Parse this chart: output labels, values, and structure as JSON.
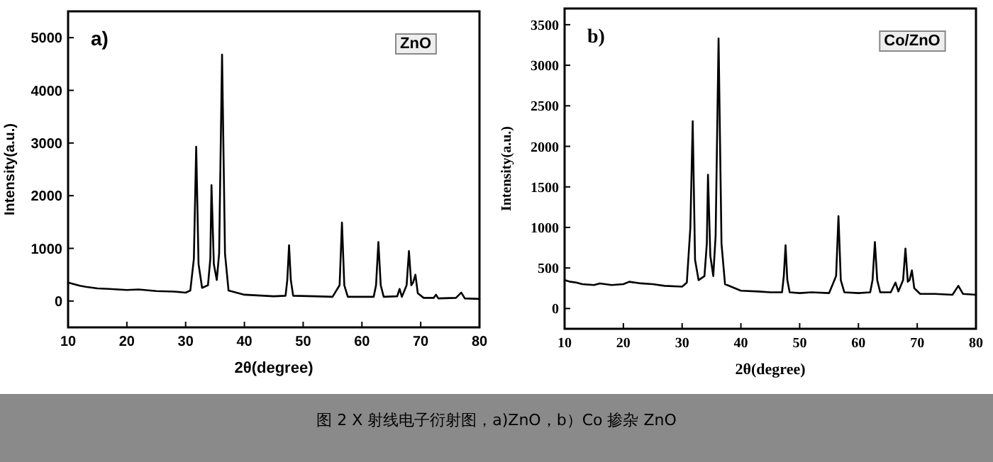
{
  "chart_data": [
    {
      "type": "line",
      "xlabel": "2θ(degree)",
      "ylabel": "Intensity(a.u.)",
      "xlim": [
        10,
        80
      ],
      "ylim": [
        -500,
        5500
      ],
      "xticks": [
        10,
        20,
        30,
        40,
        50,
        60,
        70,
        80
      ],
      "yticks": [
        0,
        1000,
        2000,
        3000,
        4000,
        5000
      ],
      "color": "#000000",
      "x": [
        10,
        11,
        12,
        13,
        15,
        17,
        20,
        22,
        25,
        28,
        30,
        30.8,
        31.4,
        31.8,
        32.2,
        32.8,
        33.8,
        34.2,
        34.4,
        34.8,
        35.3,
        35.7,
        36.2,
        36.7,
        37.3,
        40,
        45,
        47,
        47.3,
        47.6,
        47.9,
        48.3,
        52,
        55,
        56.2,
        56.6,
        57,
        57.6,
        60,
        62,
        62.4,
        62.8,
        63.2,
        63.7,
        66,
        66.4,
        66.8,
        67.6,
        68,
        68.4,
        68.7,
        69.1,
        69.5,
        70.5,
        72.2,
        72.6,
        73,
        76,
        76.9,
        77.5,
        80
      ],
      "values": [
        350,
        320,
        290,
        270,
        240,
        230,
        210,
        220,
        190,
        180,
        160,
        200,
        800,
        2930,
        700,
        250,
        300,
        800,
        2200,
        700,
        400,
        900,
        4680,
        900,
        200,
        120,
        90,
        100,
        400,
        1060,
        400,
        100,
        90,
        80,
        300,
        1490,
        300,
        80,
        80,
        80,
        300,
        1120,
        300,
        80,
        90,
        230,
        80,
        300,
        950,
        300,
        350,
        500,
        150,
        60,
        60,
        120,
        50,
        60,
        160,
        50,
        40
      ],
      "annotations": [
        "a)",
        "ZnO",
        "图 2  X 射线电子衍射图，a)ZnO，b）Co 掺杂 ZnO"
      ]
    },
    {
      "type": "line",
      "xlabel": "2θ(degree)",
      "ylabel": "Intensity(a.u.)",
      "xlim": [
        10,
        80
      ],
      "ylim": [
        -250,
        3700
      ],
      "xticks": [
        10,
        20,
        30,
        40,
        50,
        60,
        70,
        80
      ],
      "yticks": [
        0,
        500,
        1000,
        1500,
        2000,
        2500,
        3000,
        3500
      ],
      "color": "#000000",
      "x": [
        10,
        11,
        12,
        13,
        15,
        16,
        18,
        20,
        21,
        23,
        25,
        27,
        30,
        30.8,
        31.4,
        31.8,
        32.2,
        32.8,
        33.8,
        34.2,
        34.4,
        34.8,
        35.3,
        35.7,
        36.2,
        36.7,
        37.3,
        40,
        43,
        45,
        47,
        47.3,
        47.6,
        47.9,
        48.3,
        50,
        52,
        55,
        56.2,
        56.6,
        57,
        57.6,
        60,
        62,
        62.4,
        62.8,
        63.2,
        63.7,
        65.5,
        66.3,
        66.8,
        67.6,
        68,
        68.4,
        68.7,
        69.1,
        69.5,
        70.5,
        73,
        76,
        77,
        77.8,
        80
      ],
      "values": [
        350,
        330,
        320,
        300,
        290,
        310,
        290,
        300,
        330,
        310,
        300,
        280,
        270,
        320,
        1000,
        2310,
        600,
        350,
        400,
        800,
        1650,
        650,
        400,
        900,
        3330,
        800,
        300,
        220,
        210,
        200,
        200,
        400,
        780,
        350,
        200,
        190,
        200,
        190,
        400,
        1140,
        350,
        200,
        190,
        200,
        350,
        820,
        350,
        200,
        200,
        320,
        210,
        350,
        740,
        330,
        350,
        470,
        250,
        180,
        180,
        170,
        280,
        180,
        170
      ],
      "annotations": [
        "b)",
        "Co/ZnO"
      ]
    }
  ]
}
